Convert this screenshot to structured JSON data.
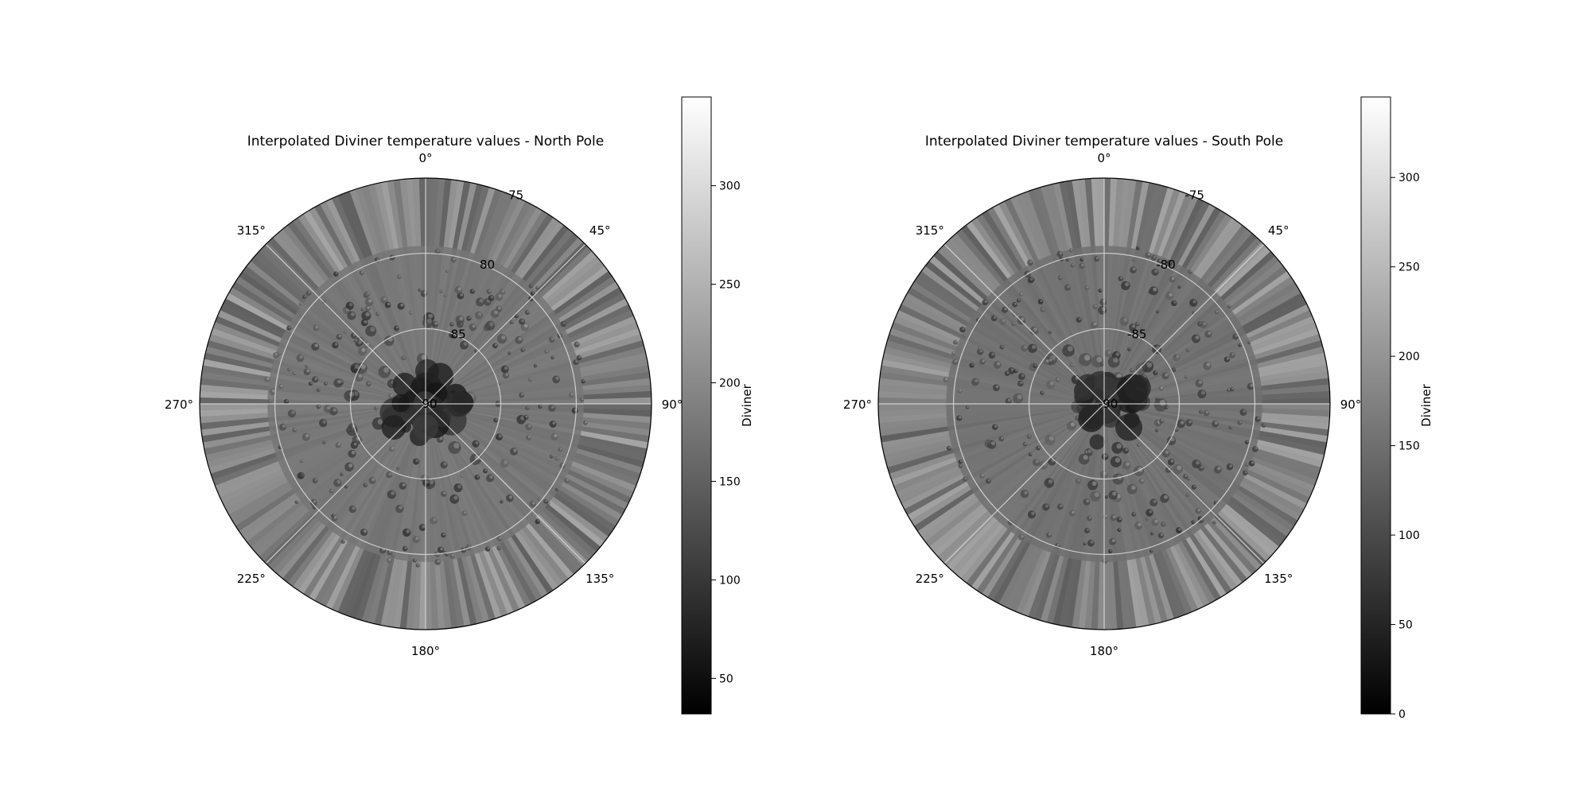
{
  "figure": {
    "background": "#ffffff"
  },
  "chart_data": [
    {
      "type": "heatmap",
      "projection": "polar",
      "title": "Interpolated Diviner temperature values - North Pole",
      "theta_tick_labels": [
        "0°",
        "45°",
        "90°",
        "135°",
        "180°",
        "225°",
        "270°",
        "315°"
      ],
      "r_tick_labels": [
        "75",
        "80",
        "85",
        "90"
      ],
      "colormap": "gray",
      "colorbar": {
        "label": "Diviner",
        "ticks": [
          50,
          100,
          150,
          200,
          250,
          300
        ],
        "vmin": 32,
        "vmax": 345
      },
      "grid": true
    },
    {
      "type": "heatmap",
      "projection": "polar",
      "title": "Interpolated Diviner temperature values - South Pole",
      "theta_tick_labels": [
        "0°",
        "45°",
        "90°",
        "135°",
        "180°",
        "225°",
        "270°",
        "315°"
      ],
      "r_tick_labels": [
        "-75",
        "-80",
        "-85",
        "-90"
      ],
      "colormap": "gray",
      "colorbar": {
        "label": "Diviner",
        "ticks": [
          0,
          50,
          100,
          150,
          200,
          250,
          300
        ],
        "vmin": 0,
        "vmax": 345
      },
      "grid": true
    }
  ]
}
